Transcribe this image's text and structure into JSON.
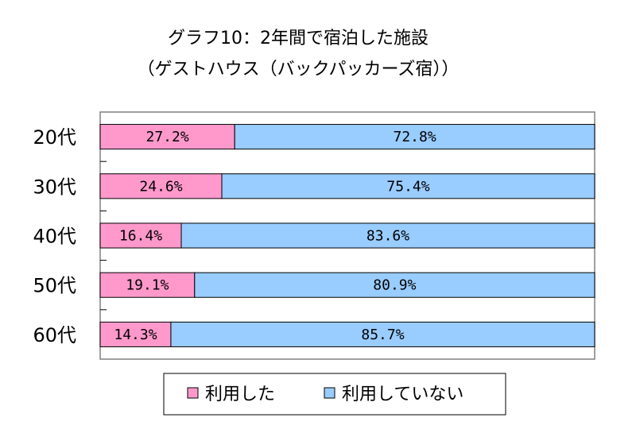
{
  "chart_data": {
    "type": "bar",
    "stacked": true,
    "orientation": "horizontal",
    "percent_stacked": true,
    "title_lines": [
      "グラフ10：2年間で宿泊した施設",
      "（ゲストハウス（バックパッカーズ宿））"
    ],
    "categories": [
      "20代",
      "30代",
      "40代",
      "50代",
      "60代"
    ],
    "series": [
      {
        "name": "利用した",
        "values": [
          27.2,
          24.6,
          16.4,
          19.1,
          14.3
        ],
        "labels": [
          "27.2%",
          "24.6%",
          "16.4%",
          "19.1%",
          "14.3%"
        ],
        "color": "#ff99cc"
      },
      {
        "name": "利用していない",
        "values": [
          72.8,
          75.4,
          83.6,
          80.9,
          85.7
        ],
        "labels": [
          "72.8%",
          "75.4%",
          "83.6%",
          "80.9%",
          "85.7%"
        ],
        "color": "#99ccff"
      }
    ],
    "xlim": [
      0,
      100
    ],
    "legend": "bottom",
    "grid": false
  }
}
